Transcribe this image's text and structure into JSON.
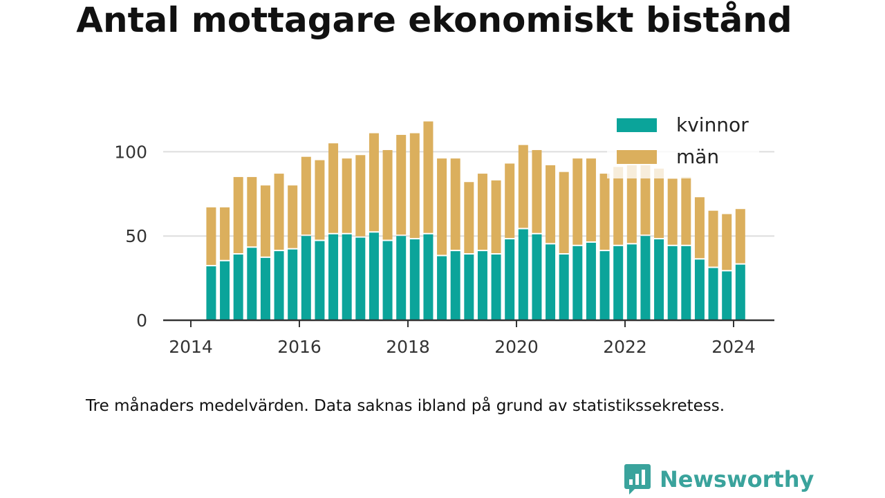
{
  "title": "Antal mottagare ekonomiskt bistånd",
  "caption": "Tre månaders medelvärden. Data saknas ibland på grund av statistikssekretess.",
  "brand": {
    "name": "Newsworthy",
    "logo_icon": "bar-chart-speech-bubble-icon"
  },
  "colors": {
    "kvinnor": "#0ba49a",
    "man": "#dbaf5d",
    "grid": "#dddddd",
    "axis": "#333333",
    "brand": "#3aa39c"
  },
  "chart_data": {
    "type": "bar",
    "stacked": true,
    "title": "Antal mottagare ekonomiskt bistånd",
    "xlabel": "",
    "ylabel": "",
    "ylim": [
      0,
      120
    ],
    "y_ticks": [
      0,
      50,
      100
    ],
    "x_ticks": [
      "2014",
      "2016",
      "2018",
      "2020",
      "2022",
      "2024"
    ],
    "grid": true,
    "legend_position": "top-right",
    "x": [
      2014.375,
      2014.625,
      2014.875,
      2015.125,
      2015.375,
      2015.625,
      2015.875,
      2016.125,
      2016.375,
      2016.625,
      2016.875,
      2017.125,
      2017.375,
      2017.625,
      2017.875,
      2018.125,
      2018.375,
      2018.625,
      2018.875,
      2019.125,
      2019.375,
      2019.625,
      2019.875,
      2020.125,
      2020.375,
      2020.625,
      2020.875,
      2021.125,
      2021.375,
      2021.625,
      2021.875,
      2022.125,
      2022.375,
      2022.625,
      2022.875,
      2023.125,
      2023.375,
      2023.625,
      2023.875,
      2024.125
    ],
    "series": [
      {
        "name": "kvinnor",
        "values": [
          32,
          35,
          39,
          43,
          37,
          41,
          42,
          50,
          47,
          51,
          51,
          49,
          52,
          47,
          50,
          48,
          51,
          38,
          41,
          39,
          41,
          39,
          48,
          54,
          51,
          45,
          39,
          44,
          46,
          41,
          44,
          45,
          50,
          48,
          44,
          44,
          36,
          31,
          29,
          33
        ]
      },
      {
        "name": "män",
        "values": [
          35,
          32,
          46,
          42,
          43,
          46,
          38,
          47,
          48,
          54,
          45,
          49,
          59,
          54,
          60,
          63,
          67,
          58,
          55,
          43,
          46,
          44,
          45,
          50,
          50,
          47,
          49,
          52,
          50,
          46,
          47,
          47,
          42,
          42,
          40,
          41,
          37,
          34,
          34,
          33
        ]
      }
    ]
  }
}
